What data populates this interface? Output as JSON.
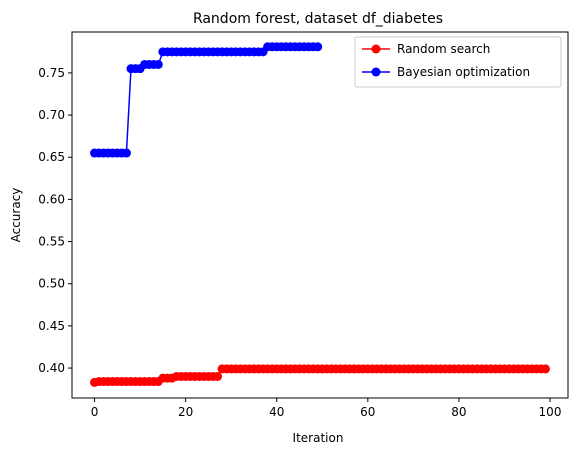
{
  "chart_data": {
    "type": "line",
    "title": "Random forest, dataset df_diabetes",
    "xlabel": "Iteration",
    "ylabel": "Accuracy",
    "xlim": [
      -4.95,
      103.95
    ],
    "ylim": [
      0.3645,
      0.7985
    ],
    "xticks": [
      0,
      20,
      40,
      60,
      80,
      100
    ],
    "yticks": [
      0.4,
      0.45,
      0.5,
      0.55,
      0.6,
      0.65,
      0.7,
      0.75
    ],
    "ytick_labels": [
      "0.40",
      "0.45",
      "0.50",
      "0.55",
      "0.60",
      "0.65",
      "0.70",
      "0.75"
    ],
    "legend_position": "top-right",
    "grid": false,
    "series": [
      {
        "name": "Random search",
        "color": "#ff0000",
        "marker": "circle",
        "step_points": [
          [
            0,
            0.383
          ],
          [
            1,
            0.384
          ],
          [
            15,
            0.388
          ],
          [
            18,
            0.39
          ],
          [
            28,
            0.399
          ]
        ],
        "x_end": 99
      },
      {
        "name": "Bayesian optimization",
        "color": "#0000ff",
        "marker": "circle",
        "step_points": [
          [
            0,
            0.655
          ],
          [
            8,
            0.755
          ],
          [
            11,
            0.76
          ],
          [
            15,
            0.775
          ],
          [
            38,
            0.781
          ]
        ],
        "x_end": 49
      }
    ]
  }
}
